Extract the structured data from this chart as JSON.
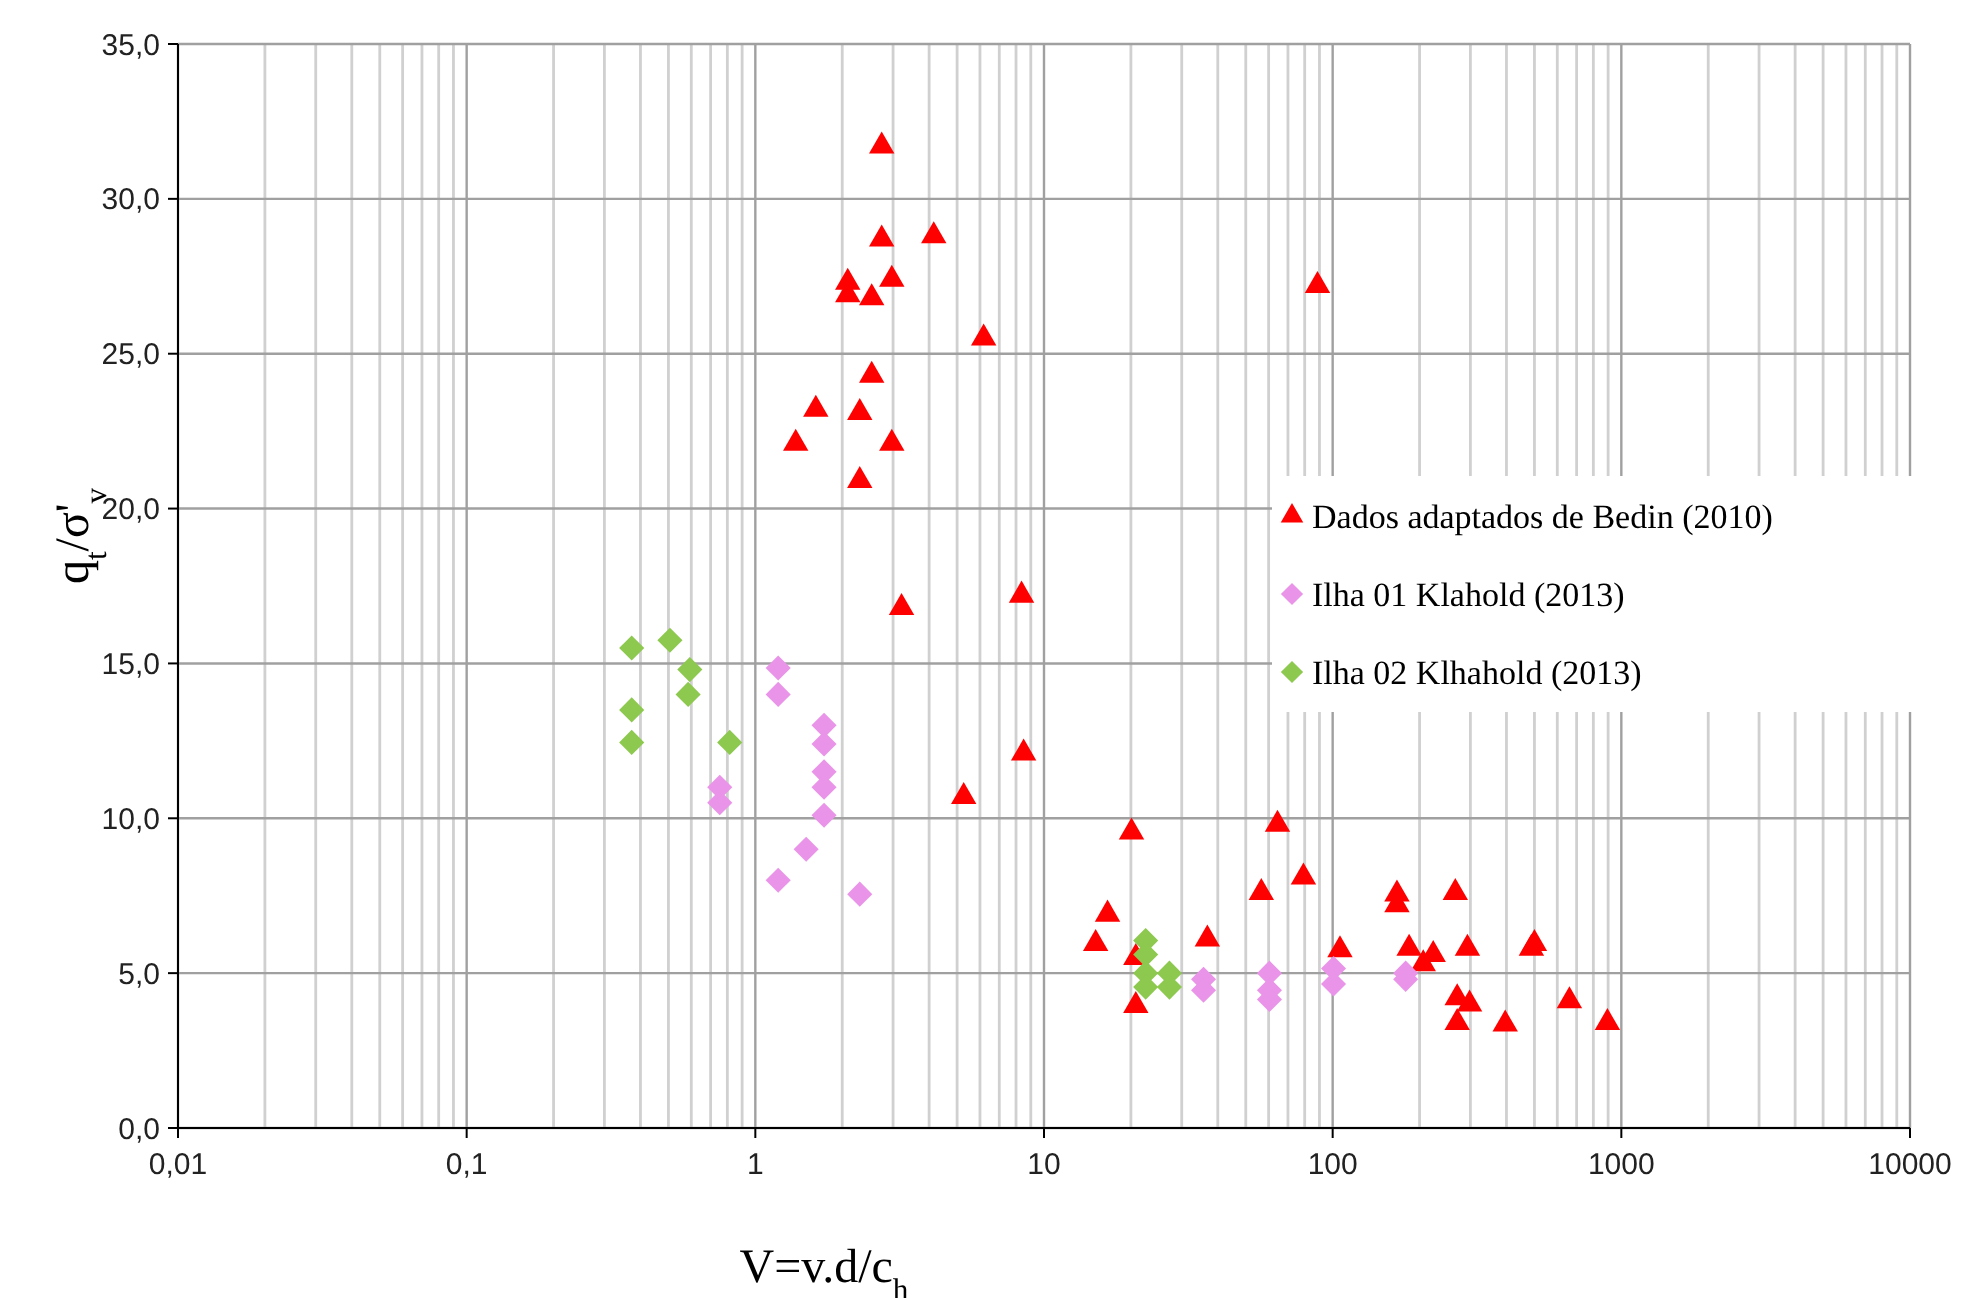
{
  "chart_data": {
    "type": "scatter",
    "xlabel": "V=v.d/c$_{h}$",
    "ylabel": "q$_{t}$/σ'$_{v}$",
    "log": "x",
    "grid": true,
    "legend": "right",
    "xlim": [
      0.01,
      10000
    ],
    "xticks": [
      {
        "value": 0.01,
        "label": "0,01"
      },
      {
        "value": 0.1,
        "label": "0,1"
      },
      1,
      10,
      100,
      1000,
      10000
    ],
    "ylim": [
      0,
      35
    ],
    "yticks": [
      {
        "value": 0,
        "label": "0,0"
      },
      {
        "value": 5,
        "label": "5,0"
      },
      {
        "value": 10,
        "label": "10,0"
      },
      {
        "value": 15,
        "label": "15,0"
      },
      {
        "value": 20,
        "label": "20,0"
      },
      {
        "value": 25,
        "label": "25,0"
      },
      {
        "value": 30,
        "label": "30,0"
      },
      {
        "value": 35,
        "label": "35,0"
      }
    ],
    "series": [
      {
        "name": "Dados adaptados de Bedin (2010)",
        "color": "#ff0000",
        "marker": "triangle",
        "x": [
          2.74,
          2.74,
          4.15,
          2.09,
          2.09,
          2.97,
          2.53,
          6.18,
          2.53,
          1.62,
          2.3,
          1.38,
          2.97,
          2.3,
          3.21,
          8.36,
          8.5,
          5.27,
          88.6,
          20.1,
          64.4,
          79.2,
          56.6,
          167,
          167,
          266,
          16.6,
          15.1,
          36.8,
          20.8,
          106,
          184,
          223,
          206,
          293,
          488,
          500,
          20.8,
          270,
          298,
          270,
          396,
          661,
          895
        ],
        "values": [
          31.7,
          28.7,
          28.8,
          27.3,
          26.9,
          27.4,
          26.8,
          25.5,
          24.3,
          23.2,
          23.1,
          22.1,
          22.1,
          20.9,
          16.8,
          17.2,
          12.1,
          10.7,
          27.2,
          9.55,
          9.8,
          8.1,
          7.6,
          7.55,
          7.2,
          7.6,
          6.9,
          5.95,
          6.1,
          5.5,
          5.75,
          5.8,
          5.6,
          5.3,
          5.8,
          5.8,
          5.95,
          3.95,
          4.2,
          4.0,
          3.4,
          3.35,
          4.1,
          3.4
        ]
      },
      {
        "name": "Ilha 01 Klahold (2013)",
        "color": "#e994e8",
        "marker": "diamond",
        "x": [
          1.2,
          1.2,
          1.73,
          1.73,
          1.73,
          1.73,
          1.73,
          0.753,
          0.753,
          1.5,
          1.2,
          2.3,
          35.7,
          35.7,
          60.4,
          60.4,
          60.4,
          100.7,
          100.7,
          179,
          179
        ],
        "values": [
          14.85,
          14.0,
          13.0,
          12.4,
          11.5,
          11.0,
          10.1,
          11.0,
          10.5,
          9.0,
          8.0,
          7.55,
          4.8,
          4.45,
          5.0,
          4.45,
          4.15,
          5.15,
          4.65,
          5.0,
          4.8
        ]
      },
      {
        "name": "Ilha 02 Klhahold (2013)",
        "color": "#8dc84f",
        "marker": "diamond",
        "x": [
          0.373,
          0.506,
          0.593,
          0.585,
          0.373,
          0.373,
          0.815,
          22.5,
          22.5,
          22.5,
          22.5,
          27.2,
          27.2
        ],
        "values": [
          15.5,
          15.75,
          14.8,
          14.0,
          13.5,
          12.45,
          12.45,
          6.05,
          5.6,
          5.0,
          4.55,
          5.0,
          4.55
        ]
      }
    ]
  }
}
